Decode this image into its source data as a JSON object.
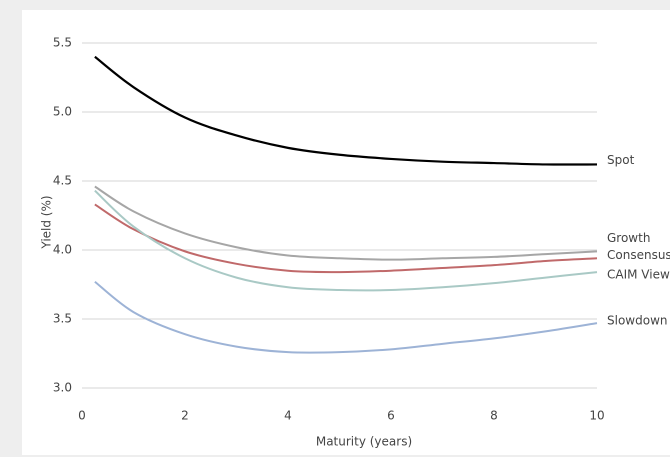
{
  "chart_data": {
    "type": "line",
    "x_label": "Maturity (years)",
    "y_label": "Yield (%)",
    "x": [
      0.25,
      1,
      2,
      3,
      4,
      5,
      6,
      7,
      8,
      9,
      10
    ],
    "series": [
      {
        "name": "Spot",
        "color": "#000000",
        "values": [
          5.4,
          5.18,
          4.96,
          4.83,
          4.74,
          4.69,
          4.66,
          4.64,
          4.63,
          4.62,
          4.62
        ]
      },
      {
        "name": "Growth",
        "color": "#a6a6a6",
        "values": [
          4.46,
          4.28,
          4.12,
          4.02,
          3.96,
          3.94,
          3.93,
          3.94,
          3.95,
          3.97,
          3.99
        ]
      },
      {
        "name": "Consensus",
        "color": "#c0696a",
        "values": [
          4.33,
          4.15,
          3.99,
          3.9,
          3.85,
          3.84,
          3.85,
          3.87,
          3.89,
          3.92,
          3.94
        ]
      },
      {
        "name": "CAIM View",
        "color": "#a9c9c5",
        "values": [
          4.43,
          4.17,
          3.94,
          3.8,
          3.73,
          3.71,
          3.71,
          3.73,
          3.76,
          3.8,
          3.84
        ]
      },
      {
        "name": "Slowdown",
        "color": "#9db3d6",
        "values": [
          3.77,
          3.55,
          3.39,
          3.3,
          3.26,
          3.26,
          3.28,
          3.32,
          3.36,
          3.41,
          3.47
        ]
      }
    ],
    "xlim": [
      0,
      10
    ],
    "xticks": [
      0,
      2,
      4,
      6,
      8,
      10
    ],
    "ylim": [
      3.0,
      5.5
    ],
    "yticks": [
      {
        "value": 3.0,
        "label": "3.0"
      },
      3.5,
      {
        "value": 4.0,
        "label": "4.0"
      },
      4.5,
      {
        "value": 5.0,
        "label": "5.0"
      },
      5.5
    ],
    "grid": true
  }
}
